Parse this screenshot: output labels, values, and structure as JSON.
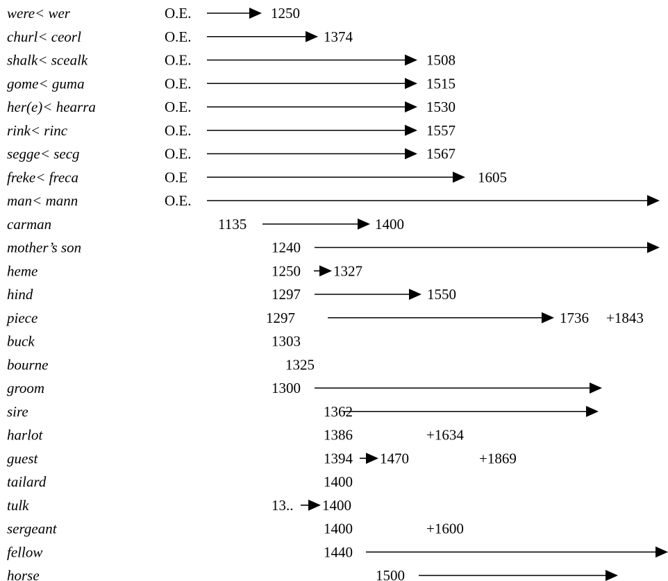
{
  "rows": [
    {
      "word": "were< wer",
      "start": "O.E.",
      "end": "1250"
    },
    {
      "word": "churl< ceorl",
      "start": "O.E.",
      "end": "1374"
    },
    {
      "word": "shalk< scealk",
      "start": "O.E.",
      "end": "1508"
    },
    {
      "word": "gome< guma",
      "start": "O.E.",
      "end": "1515"
    },
    {
      "word": "her(e)< hearra",
      "start": "O.E.",
      "end": "1530"
    },
    {
      "word": "rink< rinc",
      "start": "O.E.",
      "end": "1557"
    },
    {
      "word": "segge< secg",
      "start": "O.E.",
      "end": "1567"
    },
    {
      "word": "freke< freca",
      "start": "O.E",
      "end": "1605"
    },
    {
      "word": "man< mann",
      "start": "O.E.",
      "continues": true
    },
    {
      "word": "carman",
      "start": "1135",
      "end": "1400"
    },
    {
      "word": "mother’s son",
      "start": "1240",
      "continues": true
    },
    {
      "word": "heme",
      "start": "1250",
      "end": "1327"
    },
    {
      "word": "hind",
      "start": "1297",
      "end": "1550"
    },
    {
      "word": "piece",
      "start": "1297",
      "end": "1736",
      "notes": [
        "+1843"
      ]
    },
    {
      "word": "buck",
      "start": "1303"
    },
    {
      "word": "bourne",
      "start": "1325"
    },
    {
      "word": "groom",
      "start": "1300",
      "continues": true
    },
    {
      "word": "sire",
      "start": "1362",
      "continues": true
    },
    {
      "word": "harlot",
      "start": "1386",
      "notes": [
        "+1634"
      ]
    },
    {
      "word": "guest",
      "start": "1394",
      "end": "1470",
      "notes": [
        "+1869"
      ]
    },
    {
      "word": "tailard",
      "start": "1400"
    },
    {
      "word": "tulk",
      "start": "13..",
      "end": "1400"
    },
    {
      "word": "sergeant",
      "start": "1400",
      "notes": [
        "+1600"
      ]
    },
    {
      "word": "fellow",
      "start": "1440",
      "continues": true
    },
    {
      "word": "horse",
      "start": "1500",
      "continues": true
    }
  ]
}
